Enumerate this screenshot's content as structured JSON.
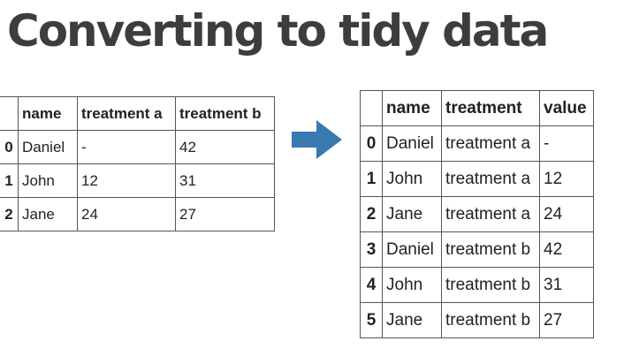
{
  "slide": {
    "title": "Converting to tidy data"
  },
  "wide_table": {
    "headers": [
      "",
      "name",
      "treatment a",
      "treatment b"
    ],
    "rows": [
      [
        "0",
        "Daniel",
        "-",
        "42"
      ],
      [
        "1",
        "John",
        "12",
        "31"
      ],
      [
        "2",
        "Jane",
        "24",
        "27"
      ]
    ]
  },
  "tidy_table": {
    "headers": [
      "",
      "name",
      "treatment",
      "value"
    ],
    "rows": [
      [
        "0",
        "Daniel",
        "treatment a",
        "-"
      ],
      [
        "1",
        "John",
        "treatment a",
        "12"
      ],
      [
        "2",
        "Jane",
        "treatment a",
        "24"
      ],
      [
        "3",
        "Daniel",
        "treatment b",
        "42"
      ],
      [
        "4",
        "John",
        "treatment b",
        "31"
      ],
      [
        "5",
        "Jane",
        "treatment b",
        "27"
      ]
    ]
  },
  "colors": {
    "arrow": "#3a78b0",
    "title": "#3d3d3d",
    "border": "#555555"
  },
  "icons": {
    "arrow": "right-arrow-icon"
  }
}
